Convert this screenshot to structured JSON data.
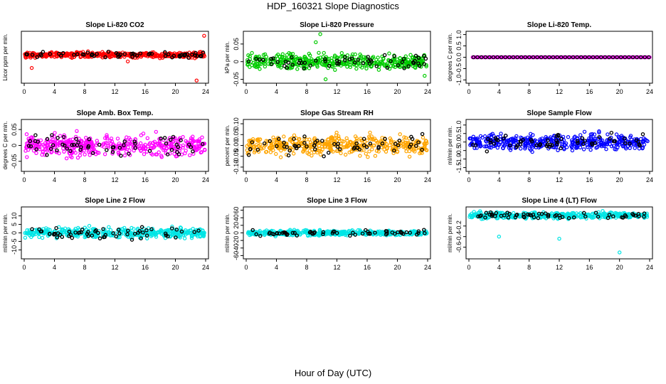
{
  "page": {
    "title": "HDP_160321  Slope Diagnostics",
    "xlabel": "Hour of Day (UTC)"
  },
  "chart_data": [
    {
      "type": "scatter",
      "title": "Slope Li-820 CO2",
      "ylabel": "Licor ppm per min.",
      "xlim": [
        0,
        24
      ],
      "xticks": [
        0,
        4,
        8,
        12,
        16,
        20,
        24
      ],
      "ylim": [
        -4.4,
        3.6
      ],
      "yticks": [],
      "color": "#ff0000",
      "series_summary": {
        "center": 0,
        "spread": 0.4,
        "outliers": [
          [
            1.0,
            -2.2
          ],
          [
            13.7,
            -1.1
          ],
          [
            22.8,
            -4.3
          ],
          [
            23.8,
            3.2
          ]
        ]
      }
    },
    {
      "type": "scatter",
      "title": "Slope Li-820 Pressure",
      "ylabel": "kPa per min.",
      "xlim": [
        0,
        24
      ],
      "xticks": [
        0,
        4,
        8,
        12,
        16,
        20,
        24
      ],
      "ylim": [
        -0.055,
        0.08
      ],
      "yticks": [
        -0.05,
        0,
        0.05
      ],
      "color": "#00cc00",
      "series_summary": {
        "center": 0,
        "spread": 0.018,
        "outliers": [
          [
            9.8,
            0.078
          ],
          [
            9.2,
            0.055
          ],
          [
            10.5,
            -0.05
          ],
          [
            23.6,
            -0.04
          ]
        ]
      }
    },
    {
      "type": "scatter",
      "title": "Slope Li-820 Temp.",
      "ylabel": "degrees C per min.",
      "xlim": [
        0,
        24
      ],
      "xticks": [
        0,
        4,
        8,
        12,
        16,
        20,
        24
      ],
      "ylim": [
        -1.05,
        1.05
      ],
      "yticks": [
        -1.0,
        -0.5,
        0.0,
        0.5,
        1.0
      ],
      "color": "#ff00ff",
      "series_summary": {
        "center": 0,
        "spread": 0,
        "outliers": []
      }
    },
    {
      "type": "scatter",
      "title": "Slope Amb. Box Temp.",
      "ylabel": "degrees C per min.",
      "xlim": [
        0,
        24
      ],
      "xticks": [
        0,
        4,
        8,
        12,
        16,
        20,
        24
      ],
      "ylim": [
        -0.075,
        0.075
      ],
      "yticks": [
        -0.05,
        0.0,
        0.05
      ],
      "color": "#ff00ff",
      "series_summary": {
        "center": 0,
        "spread": 0.028,
        "outliers": []
      }
    },
    {
      "type": "scatter",
      "title": "Slope Gas Stream RH",
      "ylabel": "percent per min.",
      "xlim": [
        0,
        24
      ],
      "xticks": [
        0,
        4,
        8,
        12,
        16,
        20,
        24
      ],
      "ylim": [
        -0.11,
        0.11
      ],
      "yticks": [
        -0.1,
        -0.05,
        0.0,
        0.05,
        0.1
      ],
      "color": "#ffa500",
      "series_summary": {
        "center": 0,
        "spread": 0.038,
        "outliers": []
      }
    },
    {
      "type": "scatter",
      "title": "Slope Sample Flow",
      "ylabel": "ml/min per min.",
      "xlim": [
        0,
        24
      ],
      "xticks": [
        0,
        4,
        8,
        12,
        16,
        20,
        24
      ],
      "ylim": [
        -1.6,
        1.2
      ],
      "yticks": [
        -1.5,
        -1.0,
        -0.5,
        0.0,
        0.5,
        1.0
      ],
      "color": "#0000ff",
      "series_summary": {
        "center": 0,
        "spread": 0.4,
        "outliers": []
      }
    },
    {
      "type": "scatter",
      "title": "Slope Line 2 Flow",
      "ylabel": "ml/min per min.",
      "xlim": [
        0,
        24
      ],
      "xticks": [
        0,
        4,
        8,
        12,
        16,
        20,
        24
      ],
      "ylim": [
        -14,
        14
      ],
      "yticks": [
        -10,
        -5,
        0,
        5,
        10
      ],
      "color": "#00e5e5",
      "series_summary": {
        "center": 0,
        "spread": 2.5,
        "outliers": []
      }
    },
    {
      "type": "scatter",
      "title": "Slope Line 3 Flow",
      "ylabel": "ml/min per min.",
      "xlim": [
        0,
        24
      ],
      "xticks": [
        0,
        4,
        8,
        12,
        16,
        20,
        24
      ],
      "ylim": [
        -63,
        63
      ],
      "yticks": [
        -60,
        -40,
        -20,
        0,
        20,
        40,
        60
      ],
      "color": "#00e5e5",
      "series_summary": {
        "center": 0,
        "spread": 6,
        "outliers": []
      }
    },
    {
      "type": "scatter",
      "title": "Slope Line 4 (LT) Flow",
      "ylabel": "ml/min per min.",
      "xlim": [
        0,
        24
      ],
      "xticks": [
        0,
        4,
        8,
        12,
        16,
        20,
        24
      ],
      "ylim": [
        -0.78,
        0.12
      ],
      "yticks": [
        -0.6,
        -0.4,
        -0.2
      ],
      "color": "#00e5e5",
      "series_summary": {
        "center": 0,
        "spread": 0.05,
        "outliers": [
          [
            4.0,
            -0.4
          ],
          [
            12.0,
            -0.44
          ],
          [
            20.0,
            -0.7
          ]
        ]
      }
    }
  ]
}
